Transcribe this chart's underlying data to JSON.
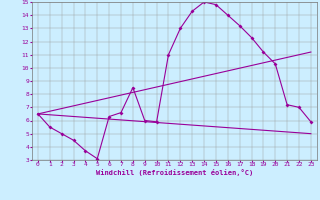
{
  "xlabel": "Windchill (Refroidissement éolien,°C)",
  "background_color": "#cceeff",
  "line_color": "#990099",
  "xlim": [
    -0.5,
    23.5
  ],
  "ylim": [
    3,
    15
  ],
  "xticks": [
    0,
    1,
    2,
    3,
    4,
    5,
    6,
    7,
    8,
    9,
    10,
    11,
    12,
    13,
    14,
    15,
    16,
    17,
    18,
    19,
    20,
    21,
    22,
    23
  ],
  "yticks": [
    3,
    4,
    5,
    6,
    7,
    8,
    9,
    10,
    11,
    12,
    13,
    14,
    15
  ],
  "line1_x": [
    0,
    1,
    2,
    3,
    4,
    5,
    6,
    7,
    8,
    9,
    10,
    11,
    12,
    13,
    14,
    15,
    16,
    17,
    18,
    19,
    20,
    21,
    22,
    23
  ],
  "line1_y": [
    6.5,
    5.5,
    5.0,
    4.5,
    3.7,
    3.1,
    6.3,
    6.6,
    8.5,
    6.0,
    5.9,
    11.0,
    13.0,
    14.3,
    15.0,
    14.8,
    14.0,
    13.2,
    12.3,
    11.2,
    10.3,
    7.2,
    7.0,
    5.9
  ],
  "line2_x": [
    0,
    23
  ],
  "line2_y": [
    6.5,
    5.0
  ],
  "line3_x": [
    0,
    23
  ],
  "line3_y": [
    6.5,
    11.2
  ]
}
